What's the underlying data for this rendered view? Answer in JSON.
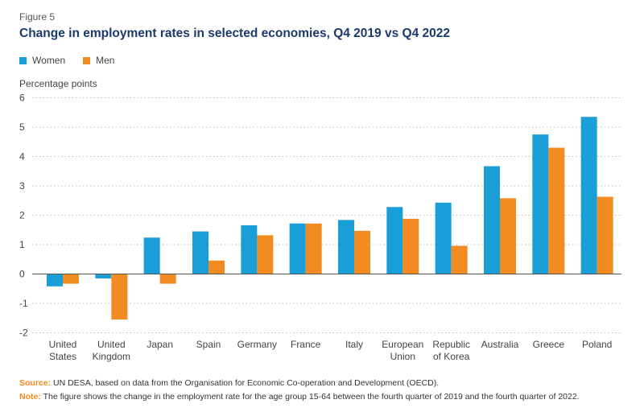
{
  "figure_label": "Figure 5",
  "title": "Change in employment rates in selected economies, Q4 2019 vs Q4 2022",
  "colors": {
    "women": "#1a9ed8",
    "men": "#f28b22",
    "grid": "#bdbdbd",
    "title": "#1a3a6b",
    "source": "#f28b22"
  },
  "source_label": "Source:",
  "source_text": "UN DESA, based on data from the Organisation for Economic Co-operation and Development (OECD).",
  "note_label": "Note:",
  "note_text": "The figure shows the change in the employment rate for the age group 15-64 between the fourth quarter of 2019 and the fourth quarter of 2022.",
  "chart_data": {
    "type": "bar",
    "title": "Change in employment rates in selected economies, Q4 2019 vs Q4 2022",
    "ylabel": "Percentage points",
    "xlabel": "",
    "ylim": [
      -2,
      6
    ],
    "yticks": [
      6,
      5,
      4,
      3,
      2,
      1,
      0,
      -1,
      -2
    ],
    "legend_position": "top-left",
    "grid": true,
    "categories": [
      [
        "United",
        "States"
      ],
      [
        "United",
        "Kingdom"
      ],
      [
        "Japan"
      ],
      [
        "Spain"
      ],
      [
        "Germany"
      ],
      [
        "France"
      ],
      [
        "Italy"
      ],
      [
        "European",
        "Union"
      ],
      [
        "Republic",
        "of Korea"
      ],
      [
        "Australia"
      ],
      [
        "Greece"
      ],
      [
        "Poland"
      ]
    ],
    "series": [
      {
        "name": "Women",
        "values": [
          -0.42,
          -0.15,
          1.24,
          1.45,
          1.66,
          1.72,
          1.84,
          2.28,
          2.43,
          3.67,
          4.75,
          5.35
        ]
      },
      {
        "name": "Men",
        "values": [
          -0.33,
          -1.55,
          -0.33,
          0.46,
          1.32,
          1.72,
          1.47,
          1.88,
          0.96,
          2.58,
          4.3,
          2.63
        ]
      }
    ]
  }
}
